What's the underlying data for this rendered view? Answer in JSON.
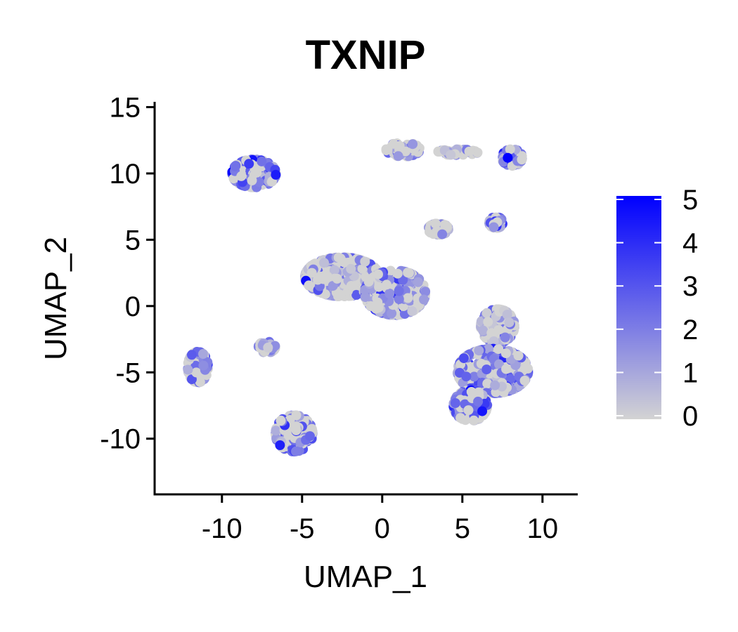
{
  "chart_data": {
    "type": "scatter",
    "title": "TXNIP",
    "xlabel": "UMAP_1",
    "ylabel": "UMAP_2",
    "xlim": [
      -14.2,
      12.2
    ],
    "ylim": [
      -14.2,
      15.4
    ],
    "xticks": [
      -10,
      -5,
      0,
      5,
      10
    ],
    "xtick_labels": [
      "-10",
      "-5",
      "0",
      "5",
      "10"
    ],
    "yticks": [
      -10,
      -5,
      0,
      5,
      10,
      15
    ],
    "ytick_labels": [
      "-10",
      "-5",
      "0",
      "5",
      "10",
      "15"
    ],
    "grid": false,
    "legend_position": "right",
    "color_scale": {
      "low_color": "#d3d3d3",
      "high_color": "#0000ff",
      "min": 0,
      "max": 5,
      "ticks": [
        0,
        1,
        2,
        3,
        4,
        5
      ],
      "tick_labels": [
        "0",
        "1",
        "2",
        "3",
        "4",
        "5"
      ]
    },
    "clusters": [
      {
        "center": [
          -8.0,
          10.0
        ],
        "spread": [
          1.3,
          1.0
        ],
        "mean_expression": 2.5
      },
      {
        "center": [
          -11.5,
          -4.6
        ],
        "spread": [
          0.6,
          1.1
        ],
        "mean_expression": 1.7
      },
      {
        "center": [
          -5.5,
          -9.6
        ],
        "spread": [
          1.1,
          1.3
        ],
        "mean_expression": 1.8
      },
      {
        "center": [
          -7.2,
          -3.1
        ],
        "spread": [
          0.5,
          0.4
        ],
        "mean_expression": 1.2
      },
      {
        "center": [
          -2.5,
          2.2
        ],
        "spread": [
          2.2,
          1.4
        ],
        "mean_expression": 1.0
      },
      {
        "center": [
          0.8,
          1.0
        ],
        "spread": [
          1.8,
          1.6
        ],
        "mean_expression": 1.6
      },
      {
        "center": [
          3.5,
          5.8
        ],
        "spread": [
          0.6,
          0.4
        ],
        "mean_expression": 0.6
      },
      {
        "center": [
          1.3,
          11.8
        ],
        "spread": [
          1.0,
          0.5
        ],
        "mean_expression": 1.5
      },
      {
        "center": [
          4.7,
          11.6
        ],
        "spread": [
          1.2,
          0.2
        ],
        "mean_expression": 0.3
      },
      {
        "center": [
          8.1,
          11.2
        ],
        "spread": [
          0.6,
          0.6
        ],
        "mean_expression": 1.9
      },
      {
        "center": [
          7.1,
          6.3
        ],
        "spread": [
          0.4,
          0.4
        ],
        "mean_expression": 2.0
      },
      {
        "center": [
          7.2,
          -1.5
        ],
        "spread": [
          1.0,
          1.2
        ],
        "mean_expression": 1.0
      },
      {
        "center": [
          6.9,
          -4.9
        ],
        "spread": [
          2.1,
          1.6
        ],
        "mean_expression": 2.0
      },
      {
        "center": [
          5.5,
          -7.5
        ],
        "spread": [
          1.0,
          1.1
        ],
        "mean_expression": 2.6
      }
    ]
  }
}
